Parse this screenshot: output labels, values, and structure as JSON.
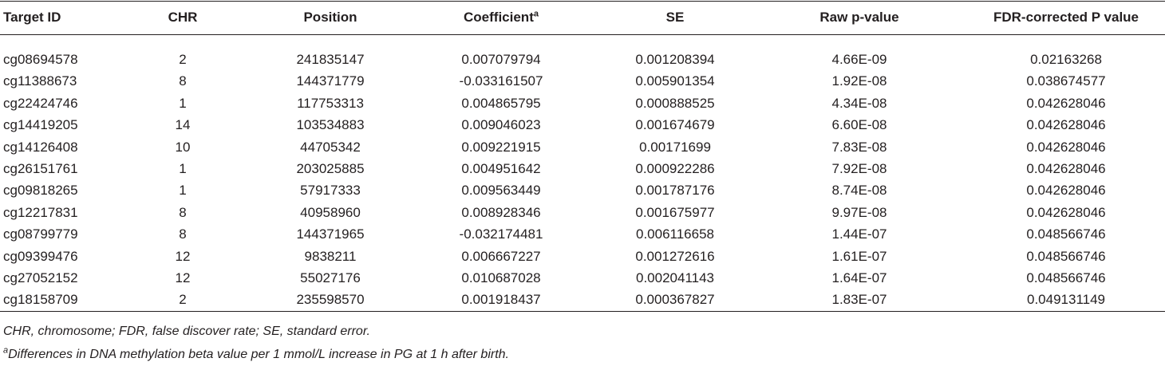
{
  "table": {
    "headers": [
      "Target ID",
      "CHR",
      "Position",
      {
        "text": "Coefficient",
        "note": "a"
      },
      "SE",
      "Raw p-value",
      "FDR-corrected P value"
    ],
    "rows": [
      [
        "cg08694578",
        "2",
        "241835147",
        "0.007079794",
        "0.001208394",
        "4.66E-09",
        "0.02163268"
      ],
      [
        "cg11388673",
        "8",
        "144371779",
        "-0.033161507",
        "0.005901354",
        "1.92E-08",
        "0.038674577"
      ],
      [
        "cg22424746",
        "1",
        "117753313",
        "0.004865795",
        "0.000888525",
        "4.34E-08",
        "0.042628046"
      ],
      [
        "cg14419205",
        "14",
        "103534883",
        "0.009046023",
        "0.001674679",
        "6.60E-08",
        "0.042628046"
      ],
      [
        "cg14126408",
        "10",
        "44705342",
        "0.009221915",
        "0.00171699",
        "7.83E-08",
        "0.042628046"
      ],
      [
        "cg26151761",
        "1",
        "203025885",
        "0.004951642",
        "0.000922286",
        "7.92E-08",
        "0.042628046"
      ],
      [
        "cg09818265",
        "1",
        "57917333",
        "0.009563449",
        "0.001787176",
        "8.74E-08",
        "0.042628046"
      ],
      [
        "cg12217831",
        "8",
        "40958960",
        "0.008928346",
        "0.001675977",
        "9.97E-08",
        "0.042628046"
      ],
      [
        "cg08799779",
        "8",
        "144371965",
        "-0.032174481",
        "0.006116658",
        "1.44E-07",
        "0.048566746"
      ],
      [
        "cg09399476",
        "12",
        "9838211",
        "0.006667227",
        "0.001272616",
        "1.61E-07",
        "0.048566746"
      ],
      [
        "cg27052152",
        "12",
        "55027176",
        "0.010687028",
        "0.002041143",
        "1.64E-07",
        "0.048566746"
      ],
      [
        "cg18158709",
        "2",
        "235598570",
        "0.001918437",
        "0.000367827",
        "1.83E-07",
        "0.049131149"
      ]
    ]
  },
  "footnotes": [
    {
      "text": "CHR, chromosome; FDR, false discover rate; SE, standard error."
    },
    {
      "mark": "a",
      "text": "Differences in DNA methylation beta value per 1 mmol/L increase in PG at 1 h after birth."
    }
  ]
}
